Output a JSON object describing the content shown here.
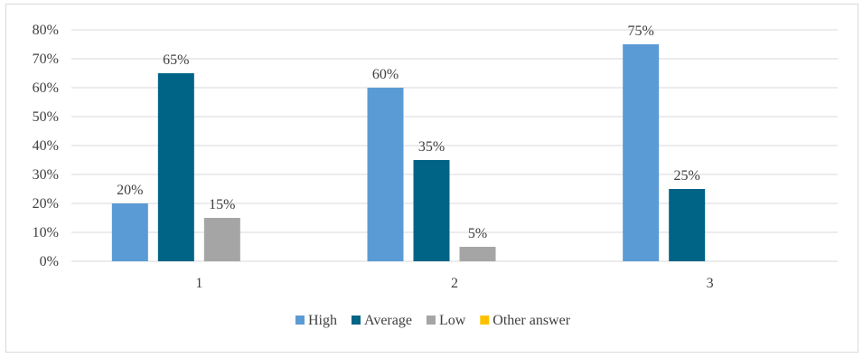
{
  "chart_data": {
    "type": "bar",
    "title": "",
    "xlabel": "",
    "ylabel": "",
    "categories": [
      "1",
      "2",
      "3"
    ],
    "ylim": [
      0,
      80
    ],
    "ytick_step": 10,
    "ytick_suffix": "%",
    "grid": true,
    "legend_position": "bottom",
    "series": [
      {
        "name": "High",
        "color": "#5b9bd5",
        "values": [
          20,
          60,
          75
        ],
        "labels": [
          "20%",
          "60%",
          "75%"
        ]
      },
      {
        "name": "Average",
        "color": "#006487",
        "values": [
          65,
          35,
          25
        ],
        "labels": [
          "65%",
          "35%",
          "25%"
        ]
      },
      {
        "name": "Low",
        "color": "#a5a5a5",
        "values": [
          15,
          5,
          0
        ],
        "labels": [
          "15%",
          "5%",
          ""
        ]
      },
      {
        "name": "Other answer",
        "color": "#ffc000",
        "values": [
          0,
          0,
          0
        ],
        "labels": [
          "",
          "",
          ""
        ]
      }
    ]
  }
}
